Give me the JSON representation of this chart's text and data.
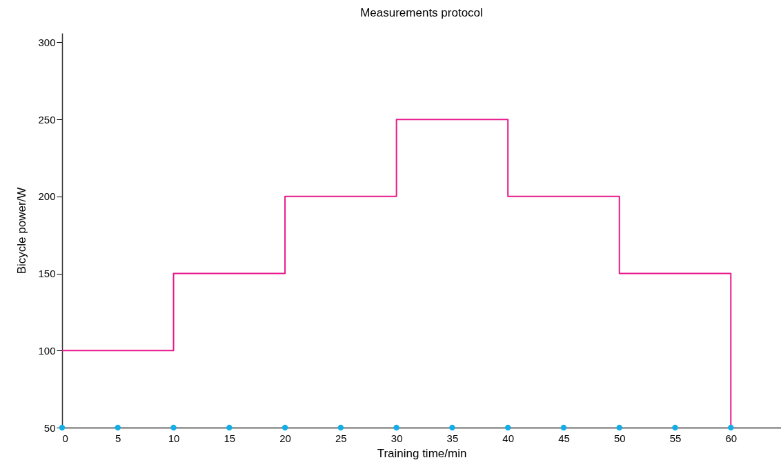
{
  "chart_data": {
    "type": "step",
    "title": "Measurements protocol",
    "xlabel": "Training time/min",
    "ylabel": "Bicycle power/W",
    "x": [
      0,
      10,
      20,
      30,
      40,
      50,
      60
    ],
    "series": [
      {
        "color": "#e8198b",
        "values": [
          100,
          150,
          200,
          250,
          200,
          150,
          50
        ],
        "marker": "none"
      },
      {
        "type": "scatter",
        "color": "#12aeea",
        "x": [
          0,
          5,
          10,
          15,
          20,
          25,
          30,
          35,
          40,
          45,
          50,
          55,
          60
        ],
        "values": [
          50,
          50,
          50,
          50,
          50,
          50,
          50,
          50,
          50,
          50,
          50,
          50,
          50
        ],
        "marker": "circle"
      }
    ],
    "xlim": [
      0,
      64.5
    ],
    "xticks": [
      0,
      5,
      10,
      15,
      20,
      25,
      30,
      35,
      40,
      45,
      50,
      55,
      60
    ],
    "ylim": [
      50,
      306
    ],
    "yticks": [
      50,
      100,
      150,
      200,
      250,
      300
    ],
    "grid": false
  }
}
